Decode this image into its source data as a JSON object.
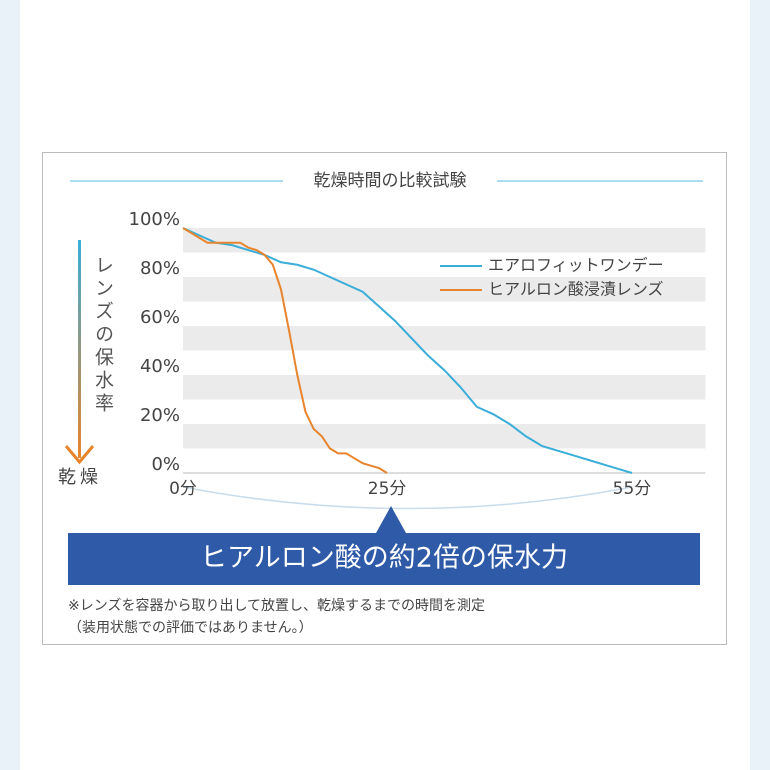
{
  "chart_data": {
    "type": "line",
    "title": "乾燥時間の比較試験",
    "y_label": "レンズの保水率",
    "y_label_end": "乾燥",
    "xlim": [
      0,
      64
    ],
    "xticks": [
      {
        "value": 0,
        "label": "0分"
      },
      {
        "value": 25,
        "label": "25分"
      },
      {
        "value": 55,
        "label": "55分"
      }
    ],
    "ylim": [
      0,
      100
    ],
    "yticks": [
      {
        "value": 0,
        "label": "0%"
      },
      {
        "value": 20,
        "label": "20%"
      },
      {
        "value": 40,
        "label": "40%"
      },
      {
        "value": 60,
        "label": "60%"
      },
      {
        "value": 80,
        "label": "80%"
      },
      {
        "value": 100,
        "label": "100%"
      }
    ],
    "legend": "upper right",
    "series": [
      {
        "name": "エアロフィットワンデー",
        "color": "#3aaed8",
        "x": [
          0,
          2,
          4,
          6,
          8,
          10,
          12,
          14,
          16,
          18,
          20,
          22,
          24,
          26,
          28,
          30,
          32,
          34,
          36,
          38,
          40,
          42,
          44,
          46,
          48,
          50,
          52,
          54,
          55
        ],
        "values": [
          100,
          97,
          94,
          93,
          91,
          89,
          86,
          85,
          83,
          80,
          77,
          74,
          68,
          62,
          55,
          48,
          42,
          35,
          27,
          24,
          20,
          15,
          11,
          9,
          7,
          5,
          3,
          1,
          0
        ]
      },
      {
        "name": "ヒアルロン酸浸漬レンズ",
        "color": "#e8842c",
        "x": [
          0,
          3,
          7,
          8,
          9,
          10,
          11,
          12,
          13,
          14,
          15,
          16,
          17,
          18,
          19,
          20,
          21,
          22,
          23,
          24,
          25
        ],
        "values": [
          100,
          94,
          94,
          92,
          91,
          89,
          85,
          75,
          58,
          40,
          25,
          18,
          15,
          10,
          8,
          8,
          6,
          4,
          3,
          2,
          0
        ]
      }
    ],
    "annotation": "ヒアルロン酸の約2倍の保水力",
    "notes": [
      "※レンズを容器から取り出して放置し、乾燥するまでの時間を測定",
      "（装用状態での評価ではありません。）"
    ]
  }
}
